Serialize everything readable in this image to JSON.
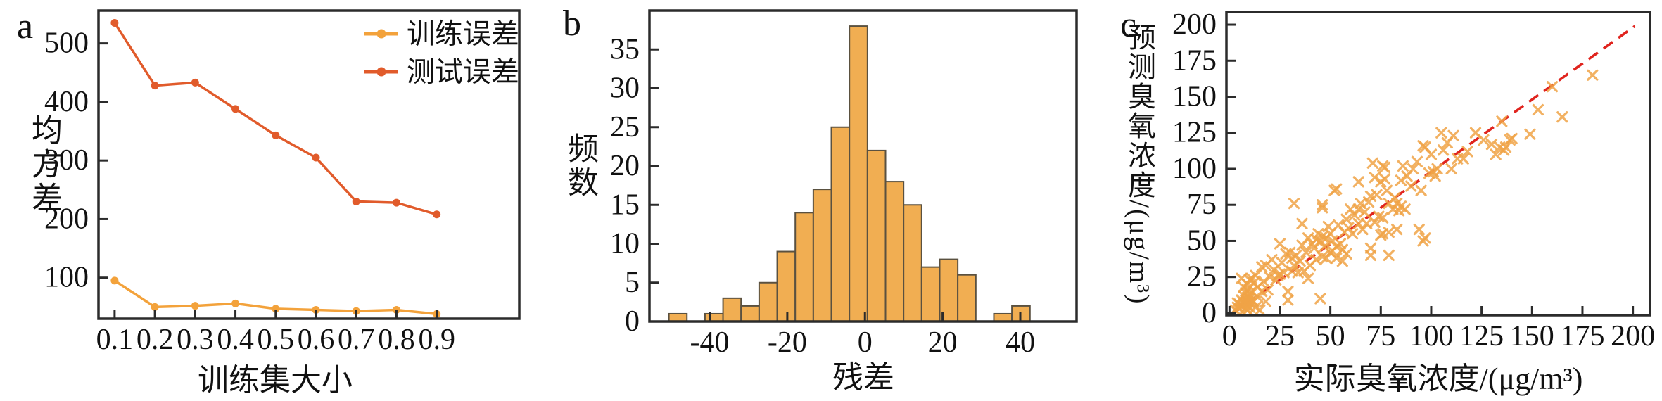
{
  "colors": {
    "background": "#FFFFFF",
    "axis": "#2B2B2B",
    "train_line": "#F3A23B",
    "test_line": "#E15B2B",
    "histogram_fill": "#F1AE52",
    "histogram_edge": "#5A5140",
    "scatter_marker": "#F0A346",
    "identity_line": "#E0241E"
  },
  "chart_data": [
    {
      "panel_label": "a",
      "type": "line",
      "xlabel": "训练集大小",
      "ylabel": "均方差",
      "x": [
        0.1,
        0.2,
        0.3,
        0.4,
        0.5,
        0.6,
        0.7,
        0.8,
        0.9
      ],
      "series": [
        {
          "name": "训练误差",
          "color": "#F3A23B",
          "values": [
            95,
            50,
            52,
            56,
            47,
            45,
            43,
            45,
            38
          ]
        },
        {
          "name": "测试误差",
          "color": "#E15B2B",
          "values": [
            535,
            428,
            433,
            388,
            343,
            305,
            230,
            228,
            208
          ]
        }
      ],
      "xticks": [
        0.1,
        0.2,
        0.3,
        0.4,
        0.5,
        0.6,
        0.7,
        0.8,
        0.9
      ],
      "xtick_labels": [
        "0.1",
        "0.2",
        "0.3",
        "0.4",
        "0.5",
        "0.6",
        "0.7",
        "0.8",
        "0.9"
      ],
      "yticks": [
        100,
        200,
        300,
        400,
        500
      ],
      "ytick_labels": [
        "100",
        "200",
        "300",
        "400",
        "500"
      ],
      "xlim": [
        0.06,
        1.105
      ],
      "ylim": [
        30,
        556
      ],
      "legend_position": "upper right",
      "grid": false
    },
    {
      "panel_label": "b",
      "type": "bar",
      "xlabel": "残差",
      "ylabel": "频数",
      "bin_start": -50.5,
      "bin_width": 4.65,
      "counts": [
        1,
        0,
        1,
        3,
        2,
        5,
        9,
        14,
        17,
        25,
        38,
        22,
        18,
        15,
        7,
        8,
        6,
        0,
        1,
        2
      ],
      "xticks": [
        -40,
        -20,
        0,
        20,
        40
      ],
      "xtick_labels": [
        "-40",
        "-20",
        "0",
        "20",
        "40"
      ],
      "yticks": [
        0,
        5,
        10,
        15,
        20,
        25,
        30,
        35
      ],
      "ytick_labels": [
        "0",
        "5",
        "10",
        "15",
        "20",
        "25",
        "30",
        "35"
      ],
      "xlim": [
        -55.5,
        54.5
      ],
      "ylim": [
        0,
        40
      ],
      "grid": false
    },
    {
      "panel_label": "c",
      "type": "scatter",
      "xlabel": "实际臭氧浓度/(μg/m³)",
      "ylabel": "预测臭氧浓度/(μg/m³)",
      "marker": "x",
      "identity_line": {
        "from": [
          1,
          -1
        ],
        "to": [
          201,
          199
        ],
        "style": "dashed",
        "color": "#E0241E"
      },
      "points": [
        [
          3,
          2
        ],
        [
          4,
          4
        ],
        [
          4,
          7
        ],
        [
          5,
          3
        ],
        [
          5,
          6
        ],
        [
          6,
          5
        ],
        [
          6,
          9
        ],
        [
          6,
          24
        ],
        [
          7,
          7
        ],
        [
          7,
          12
        ],
        [
          7,
          18
        ],
        [
          8,
          3
        ],
        [
          8,
          6
        ],
        [
          8,
          9
        ],
        [
          8,
          14
        ],
        [
          9,
          2
        ],
        [
          9,
          5
        ],
        [
          9,
          8
        ],
        [
          9,
          11
        ],
        [
          9,
          16
        ],
        [
          9,
          20
        ],
        [
          10,
          4
        ],
        [
          10,
          7
        ],
        [
          10,
          10
        ],
        [
          10,
          13
        ],
        [
          10,
          23
        ],
        [
          11,
          9
        ],
        [
          11,
          15
        ],
        [
          11,
          24
        ],
        [
          12,
          8
        ],
        [
          12,
          21
        ],
        [
          13,
          4
        ],
        [
          13,
          26
        ],
        [
          14,
          11
        ],
        [
          14,
          18
        ],
        [
          15,
          2
        ],
        [
          16,
          15
        ],
        [
          16,
          32
        ],
        [
          17,
          22
        ],
        [
          18,
          8
        ],
        [
          18,
          33
        ],
        [
          19,
          16
        ],
        [
          20,
          25
        ],
        [
          21,
          37
        ],
        [
          22,
          30
        ],
        [
          23,
          23
        ],
        [
          24,
          26
        ],
        [
          25,
          27
        ],
        [
          25,
          48
        ],
        [
          26,
          35
        ],
        [
          27,
          28
        ],
        [
          28,
          41
        ],
        [
          29,
          9
        ],
        [
          29,
          15
        ],
        [
          30,
          42
        ],
        [
          31,
          29
        ],
        [
          31,
          38
        ],
        [
          32,
          33
        ],
        [
          32,
          76
        ],
        [
          33,
          40
        ],
        [
          34,
          28
        ],
        [
          35,
          36
        ],
        [
          36,
          47
        ],
        [
          36,
          62
        ],
        [
          37,
          29
        ],
        [
          38,
          42
        ],
        [
          39,
          24
        ],
        [
          39,
          52
        ],
        [
          40,
          33
        ],
        [
          41,
          48
        ],
        [
          42,
          45
        ],
        [
          43,
          37
        ],
        [
          43,
          51
        ],
        [
          44,
          55
        ],
        [
          45,
          10
        ],
        [
          45,
          50
        ],
        [
          46,
          39
        ],
        [
          46,
          53
        ],
        [
          46,
          73
        ],
        [
          46,
          75
        ],
        [
          47,
          46
        ],
        [
          48,
          38
        ],
        [
          48,
          52
        ],
        [
          49,
          60
        ],
        [
          50,
          42
        ],
        [
          50,
          55
        ],
        [
          51,
          43
        ],
        [
          51,
          50
        ],
        [
          52,
          85
        ],
        [
          53,
          38
        ],
        [
          53,
          46
        ],
        [
          53,
          86
        ],
        [
          54,
          61
        ],
        [
          55,
          48
        ],
        [
          56,
          36
        ],
        [
          56,
          44
        ],
        [
          57,
          56
        ],
        [
          58,
          41
        ],
        [
          58,
          65
        ],
        [
          59,
          59
        ],
        [
          60,
          72
        ],
        [
          61,
          55
        ],
        [
          62,
          68
        ],
        [
          64,
          62
        ],
        [
          64,
          72
        ],
        [
          64,
          91
        ],
        [
          65,
          76
        ],
        [
          66,
          58
        ],
        [
          67,
          70
        ],
        [
          68,
          62
        ],
        [
          69,
          77
        ],
        [
          70,
          40
        ],
        [
          70,
          45
        ],
        [
          70,
          81
        ],
        [
          71,
          104
        ],
        [
          72,
          63
        ],
        [
          72,
          94
        ],
        [
          73,
          82
        ],
        [
          74,
          67
        ],
        [
          75,
          54
        ],
        [
          75,
          91
        ],
        [
          76,
          55
        ],
        [
          76,
          66
        ],
        [
          76,
          102
        ],
        [
          77,
          93
        ],
        [
          77,
          101
        ],
        [
          78,
          85
        ],
        [
          79,
          40
        ],
        [
          79,
          56
        ],
        [
          79,
          76
        ],
        [
          81,
          72
        ],
        [
          82,
          80
        ],
        [
          83,
          58
        ],
        [
          83,
          76
        ],
        [
          84,
          71
        ],
        [
          85,
          74
        ],
        [
          85,
          92
        ],
        [
          86,
          102
        ],
        [
          87,
          72
        ],
        [
          88,
          95
        ],
        [
          90,
          88
        ],
        [
          91,
          100
        ],
        [
          93,
          105
        ],
        [
          94,
          58
        ],
        [
          95,
          85
        ],
        [
          96,
          50
        ],
        [
          96,
          116
        ],
        [
          97,
          52
        ],
        [
          97,
          115
        ],
        [
          99,
          97
        ],
        [
          100,
          110
        ],
        [
          101,
          98
        ],
        [
          102,
          95
        ],
        [
          103,
          100
        ],
        [
          105,
          125
        ],
        [
          106,
          113
        ],
        [
          108,
          118
        ],
        [
          110,
          100
        ],
        [
          111,
          123
        ],
        [
          113,
          107
        ],
        [
          116,
          107
        ],
        [
          118,
          112
        ],
        [
          122,
          125
        ],
        [
          126,
          120
        ],
        [
          130,
          117
        ],
        [
          132,
          110
        ],
        [
          134,
          115
        ],
        [
          135,
          133
        ],
        [
          136,
          113
        ],
        [
          137,
          115
        ],
        [
          139,
          120
        ],
        [
          140,
          121
        ],
        [
          149,
          124
        ],
        [
          153,
          141
        ],
        [
          160,
          157
        ],
        [
          165,
          136
        ],
        [
          180,
          165
        ]
      ],
      "xticks": [
        0,
        25,
        50,
        75,
        100,
        125,
        150,
        175,
        200
      ],
      "xtick_labels": [
        "0",
        "25",
        "50",
        "75",
        "100",
        "125",
        "150",
        "175",
        "200"
      ],
      "yticks": [
        0,
        25,
        50,
        75,
        100,
        125,
        150,
        175,
        200
      ],
      "ytick_labels": [
        "0",
        "25",
        "50",
        "75",
        "100",
        "125",
        "150",
        "175",
        "200"
      ],
      "xlim": [
        -1.5,
        208.5
      ],
      "ylim": [
        -1.5,
        208.8
      ],
      "grid": false
    }
  ]
}
